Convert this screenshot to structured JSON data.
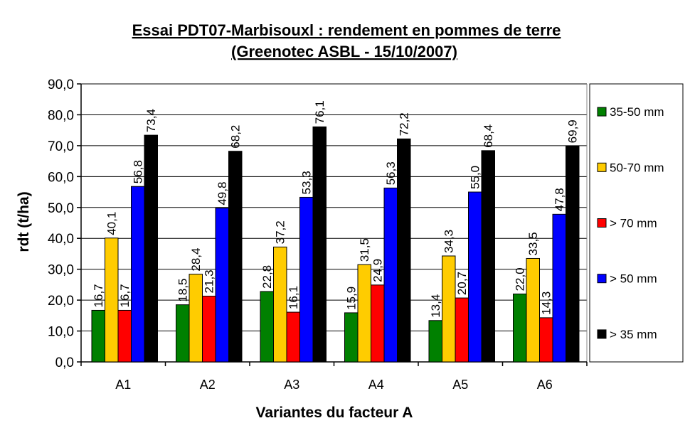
{
  "chart_data": {
    "type": "bar",
    "title": "Essai PDT07-Marbisouxl : rendement en pommes de terre",
    "subtitle": "(Greenotec ASBL - 15/10/2007)",
    "xlabel": "Variantes du facteur A",
    "ylabel": "rdt (t/ha)",
    "ylim": [
      0,
      90
    ],
    "yticks": [
      "0,0",
      "10,0",
      "20,0",
      "30,0",
      "40,0",
      "50,0",
      "60,0",
      "70,0",
      "80,0",
      "90,0"
    ],
    "categories": [
      "A1",
      "A2",
      "A3",
      "A4",
      "A5",
      "A6"
    ],
    "grid": true,
    "legend_position": "right",
    "series": [
      {
        "name": "35-50 mm",
        "color": "#008000",
        "values": [
          16.7,
          18.5,
          22.8,
          15.9,
          13.4,
          22.0
        ],
        "labels": [
          "16,7",
          "18,5",
          "22,8",
          "15,9",
          "13,4",
          "22,0"
        ]
      },
      {
        "name": "50-70 mm",
        "color": "#FFCC00",
        "values": [
          40.1,
          28.4,
          37.2,
          31.5,
          34.3,
          33.5
        ],
        "labels": [
          "40,1",
          "28,4",
          "37,2",
          "31,5",
          "34,3",
          "33,5"
        ]
      },
      {
        "name": "> 70 mm",
        "color": "#FF0000",
        "values": [
          16.7,
          21.3,
          16.1,
          24.9,
          20.7,
          14.3
        ],
        "labels": [
          "16,7",
          "21,3",
          "16,1",
          "24,9",
          "20,7",
          "14,3"
        ]
      },
      {
        "name": "> 50 mm",
        "color": "#0000FF",
        "values": [
          56.8,
          49.8,
          53.3,
          56.3,
          55.0,
          47.8
        ],
        "labels": [
          "56,8",
          "49,8",
          "53,3",
          "56,3",
          "55,0",
          "47,8"
        ]
      },
      {
        "name": "> 35 mm",
        "color": "#000000",
        "values": [
          73.4,
          68.2,
          76.1,
          72.2,
          68.4,
          69.9
        ],
        "labels": [
          "73,4",
          "68,2",
          "76,1",
          "72,2",
          "68,4",
          "69,9"
        ]
      }
    ]
  }
}
